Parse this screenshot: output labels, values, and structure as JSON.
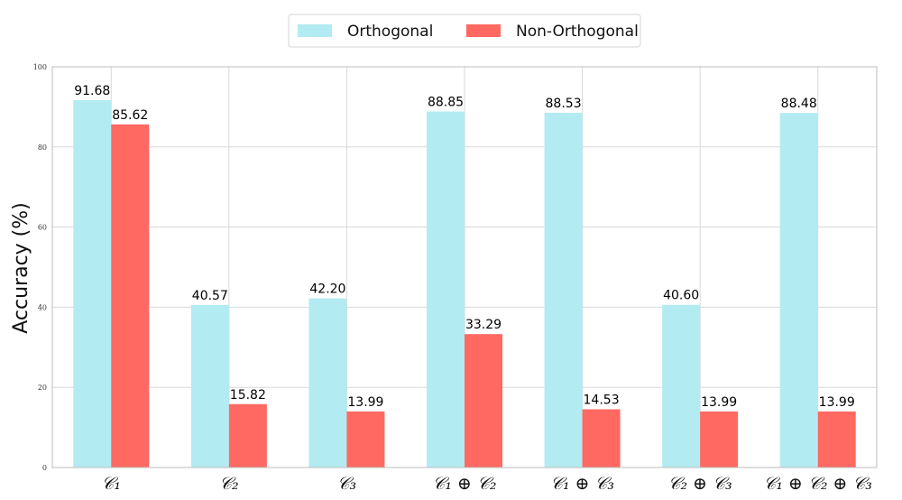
{
  "chart_data": {
    "type": "bar",
    "title": "",
    "xlabel": "",
    "ylabel": "Accuracy (%)",
    "ylim": [
      0,
      100
    ],
    "yticks": [
      "0",
      "20",
      "40",
      "60",
      "80",
      "100"
    ],
    "grid": true,
    "legend_position": "top-center",
    "categories": [
      "𝒞₁",
      "𝒞₂",
      "𝒞₃",
      "𝒞₁ ⊕ 𝒞₂",
      "𝒞₁ ⊕ 𝒞₃",
      "𝒞₂ ⊕ 𝒞₃",
      "𝒞₁ ⊕ 𝒞₂ ⊕ 𝒞₃"
    ],
    "series": [
      {
        "name": "Orthogonal",
        "color": "#b3ebf2",
        "values": [
          91.68,
          40.57,
          42.2,
          88.85,
          88.53,
          40.6,
          88.48
        ],
        "labels": [
          "91.68",
          "40.57",
          "42.20",
          "88.85",
          "88.53",
          "40.60",
          "88.48"
        ]
      },
      {
        "name": "Non-Orthogonal",
        "color": "#ff6961",
        "values": [
          85.62,
          15.82,
          13.99,
          33.29,
          14.53,
          13.99,
          13.99
        ],
        "labels": [
          "85.62",
          "15.82",
          "13.99",
          "33.29",
          "14.53",
          "13.99",
          "13.99"
        ]
      }
    ]
  }
}
